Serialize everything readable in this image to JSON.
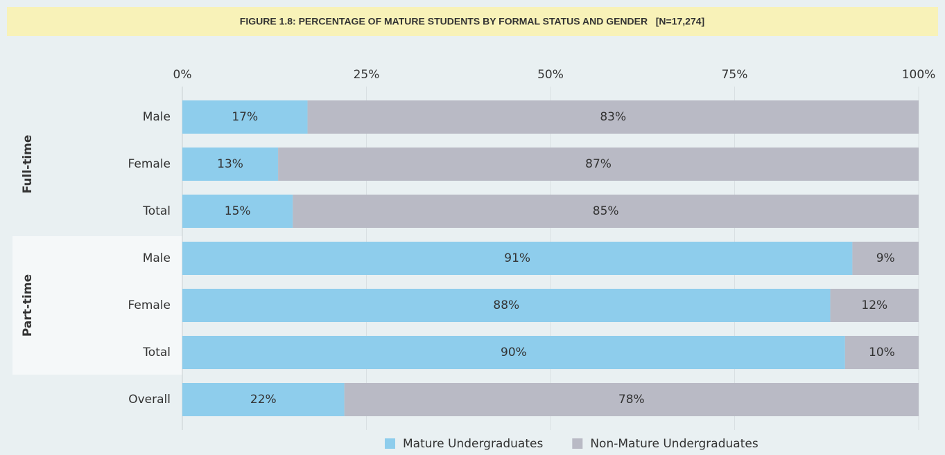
{
  "chart_data": {
    "type": "stacked-barh",
    "title": "FIGURE 1.8: PERCENTAGE OF MATURE STUDENTS BY FORMAL STATUS AND GENDER   [N=17,274]",
    "categories": [
      "Male",
      "Female",
      "Total",
      "Male",
      "Female",
      "Total",
      "Overall"
    ],
    "category_groups": [
      "Full-time",
      "Full-time",
      "Full-time",
      "Part-time",
      "Part-time",
      "Part-time",
      null
    ],
    "series": [
      {
        "name": "Mature Undergraduates",
        "color": "#8ecdec",
        "values": [
          17,
          13,
          15,
          91,
          88,
          90,
          22
        ],
        "value_labels": [
          "17%",
          "13%",
          "15%",
          "91%",
          "88%",
          "90%",
          "22%"
        ]
      },
      {
        "name": "Non-Mature Undergraduates",
        "color": "#b9bac5",
        "values": [
          83,
          87,
          85,
          9,
          12,
          10,
          78
        ],
        "value_labels": [
          "83%",
          "87%",
          "85%",
          "9%",
          "12%",
          "10%",
          "78%"
        ]
      }
    ],
    "xlim": [
      0,
      100
    ],
    "xticks": [
      {
        "value": 0,
        "label": "0%"
      },
      {
        "value": 25,
        "label": "25%"
      },
      {
        "value": 50,
        "label": "50%"
      },
      {
        "value": 75,
        "label": "75%"
      },
      {
        "value": 100,
        "label": "100%"
      }
    ],
    "grid": true,
    "legend": "bottom"
  }
}
